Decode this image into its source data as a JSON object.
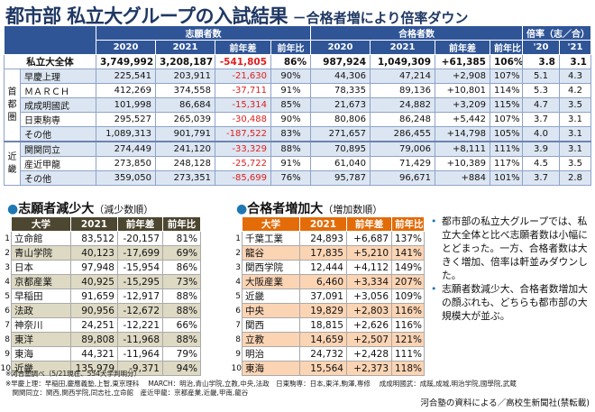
{
  "title": {
    "main": "都市部 私立大グループの入試結果",
    "sub": "－合格者増により倍率ダウン"
  },
  "main_table": {
    "group_headers": [
      "志願者数",
      "合格者数",
      "倍率（志／合）"
    ],
    "col_headers": [
      "2020",
      "2021",
      "前年差",
      "前年比",
      "2020",
      "2021",
      "前年差",
      "前年比",
      "'20",
      "'21"
    ],
    "total": {
      "label": "私立大全体",
      "values": [
        "3,749,992",
        "3,208,187",
        "-541,805",
        "86%",
        "987,924",
        "1,049,309",
        "+61,385",
        "106%",
        "3.8",
        "3.1"
      ]
    },
    "regions": [
      {
        "label": "首都圏",
        "rows": [
          {
            "label": "早慶上理",
            "values": [
              "225,541",
              "203,911",
              "-21,630",
              "90%",
              "44,306",
              "47,214",
              "+2,908",
              "107%",
              "5.1",
              "4.3"
            ]
          },
          {
            "label": "ＭＡＲＣＨ",
            "values": [
              "412,269",
              "374,558",
              "-37,711",
              "91%",
              "78,335",
              "89,136",
              "+10,801",
              "114%",
              "5.3",
              "4.2"
            ]
          },
          {
            "label": "成成明國武",
            "values": [
              "101,998",
              "86,684",
              "-15,314",
              "85%",
              "21,673",
              "24,882",
              "+3,209",
              "115%",
              "4.7",
              "3.5"
            ]
          },
          {
            "label": "日東駒専",
            "values": [
              "295,527",
              "265,039",
              "-30,488",
              "90%",
              "80,806",
              "86,248",
              "+5,442",
              "107%",
              "3.7",
              "3.1"
            ]
          },
          {
            "label": "その他",
            "values": [
              "1,089,313",
              "901,791",
              "-187,522",
              "83%",
              "271,657",
              "286,455",
              "+14,798",
              "105%",
              "4.0",
              "3.1"
            ]
          }
        ]
      },
      {
        "label": "近畿",
        "rows": [
          {
            "label": "関関同立",
            "values": [
              "274,449",
              "241,120",
              "-33,329",
              "88%",
              "70,895",
              "79,006",
              "+8,111",
              "111%",
              "3.9",
              "3.1"
            ]
          },
          {
            "label": "産近甲龍",
            "values": [
              "273,850",
              "248,128",
              "-25,722",
              "91%",
              "61,040",
              "71,429",
              "+10,389",
              "117%",
              "4.5",
              "3.5"
            ]
          },
          {
            "label": "その他",
            "values": [
              "359,050",
              "273,351",
              "-85,699",
              "76%",
              "95,787",
              "96,671",
              "+884",
              "101%",
              "3.7",
              "2.8"
            ]
          }
        ]
      }
    ]
  },
  "decrease": {
    "title": "志願者減少大",
    "note": "（減少数順）",
    "headers": [
      "大学",
      "2021",
      "前年差",
      "前年比"
    ],
    "rows": [
      [
        "1",
        "立命館",
        "83,512",
        "-20,157",
        "81%"
      ],
      [
        "2",
        "青山学院",
        "40,123",
        "-17,699",
        "69%"
      ],
      [
        "3",
        "日本",
        "97,948",
        "-15,954",
        "86%"
      ],
      [
        "4",
        "京都産業",
        "40,925",
        "-15,295",
        "73%"
      ],
      [
        "5",
        "早稲田",
        "91,659",
        "-12,917",
        "88%"
      ],
      [
        "6",
        "法政",
        "90,956",
        "-12,672",
        "88%"
      ],
      [
        "7",
        "神奈川",
        "24,251",
        "-12,221",
        "66%"
      ],
      [
        "8",
        "東洋",
        "89,808",
        "-11,968",
        "88%"
      ],
      [
        "9",
        "東海",
        "44,321",
        "-11,964",
        "79%"
      ],
      [
        "10",
        "近畿",
        "135,979",
        "-9,371",
        "94%"
      ]
    ]
  },
  "increase": {
    "title": "合格者増加大",
    "note": "（増加数順）",
    "headers": [
      "大学",
      "2021",
      "前年差",
      "前年比"
    ],
    "rows": [
      [
        "1",
        "千葉工業",
        "24,893",
        "+6,687",
        "137%"
      ],
      [
        "2",
        "龍谷",
        "17,835",
        "+5,210",
        "141%"
      ],
      [
        "3",
        "関西学院",
        "12,444",
        "+4,112",
        "149%"
      ],
      [
        "4",
        "大阪産業",
        "6,460",
        "+3,334",
        "207%"
      ],
      [
        "5",
        "近畿",
        "37,091",
        "+3,056",
        "109%"
      ],
      [
        "6",
        "中央",
        "19,829",
        "+2,803",
        "116%"
      ],
      [
        "7",
        "関西",
        "18,815",
        "+2,626",
        "116%"
      ],
      [
        "8",
        "立教",
        "14,659",
        "+2,507",
        "121%"
      ],
      [
        "9",
        "明治",
        "24,732",
        "+2,428",
        "111%"
      ],
      [
        "10",
        "東海",
        "15,564",
        "+2,373",
        "118%"
      ]
    ]
  },
  "notes": [
    "都市部の私立大グループでは、私立大全体と比べ志願者数は小幅にとどまった。一方、合格者数は大きく増加、倍率は軒並みダウンした。",
    "志願者数減少大、合格者数増加大の顔ぶれも、どちらも都市部の大規模大が並ぶ。"
  ],
  "footnotes": [
    "※河合塾調べ（5/21現在、554大学判明分）",
    "※早慶上理：早稲田,慶應義塾,上智,東京理科　 MARCH：明治,青山学院,立教,中央,法政　日東駒専：日本,東洋,駒澤,専修　 成成明國武：成蹊,成城,明治学院,國學院,武蔵",
    "　関関同立：関西,関西学院,同志社,立命館　産近甲龍：京都産業,近畿,甲南,龍谷"
  ],
  "credit": "河合塾の資料による／高校生新聞社(禁転載)",
  "colors": {
    "main_header": "#2f5597",
    "main_alt_row": "#dce6f2",
    "negative": "#e02020",
    "decrease_header": "#4d4630",
    "decrease_alt": "#ddd9c3",
    "increase_header": "#e36c09",
    "increase_alt": "#fbd4b4"
  }
}
